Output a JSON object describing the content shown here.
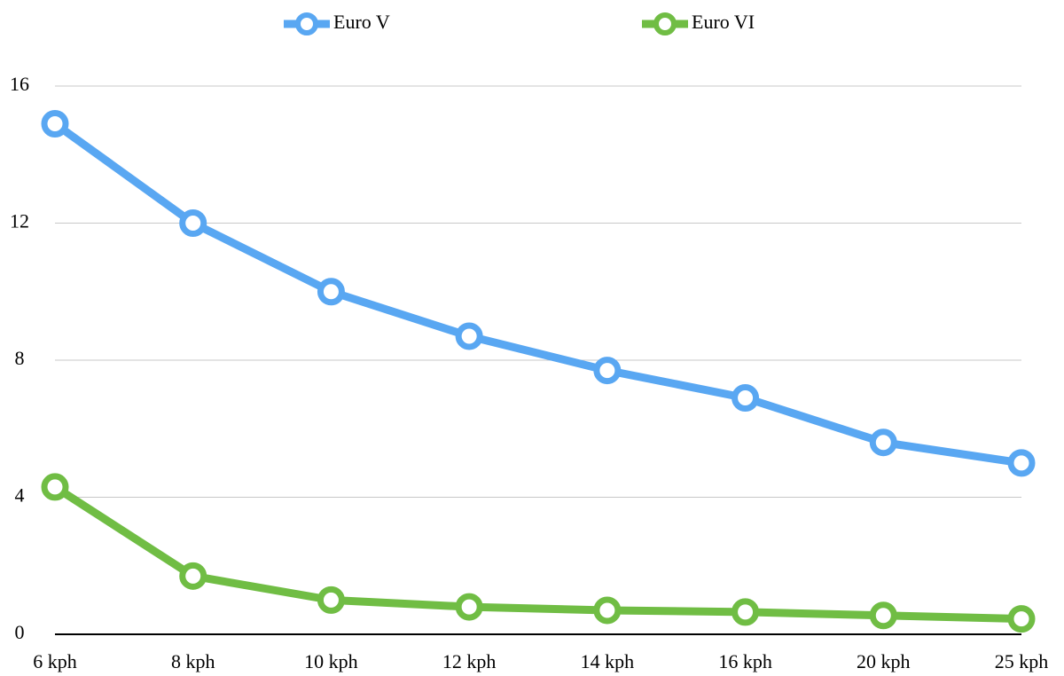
{
  "chart_data": {
    "type": "line",
    "categories": [
      "6 kph",
      "8 kph",
      "10 kph",
      "12 kph",
      "14 kph",
      "16 kph",
      "20 kph",
      "25 kph"
    ],
    "series": [
      {
        "name": "Euro V",
        "color": "#59a7f2",
        "values": [
          14.9,
          12.0,
          10.0,
          8.7,
          7.7,
          6.9,
          5.6,
          5.0
        ]
      },
      {
        "name": "Euro VI",
        "color": "#70bd44",
        "values": [
          4.3,
          1.7,
          1.0,
          0.8,
          0.7,
          0.65,
          0.55,
          0.45
        ]
      }
    ],
    "ylim": [
      0,
      16
    ],
    "yticks": [
      0,
      4,
      8,
      12,
      16
    ],
    "grid": true,
    "legend": "top"
  }
}
